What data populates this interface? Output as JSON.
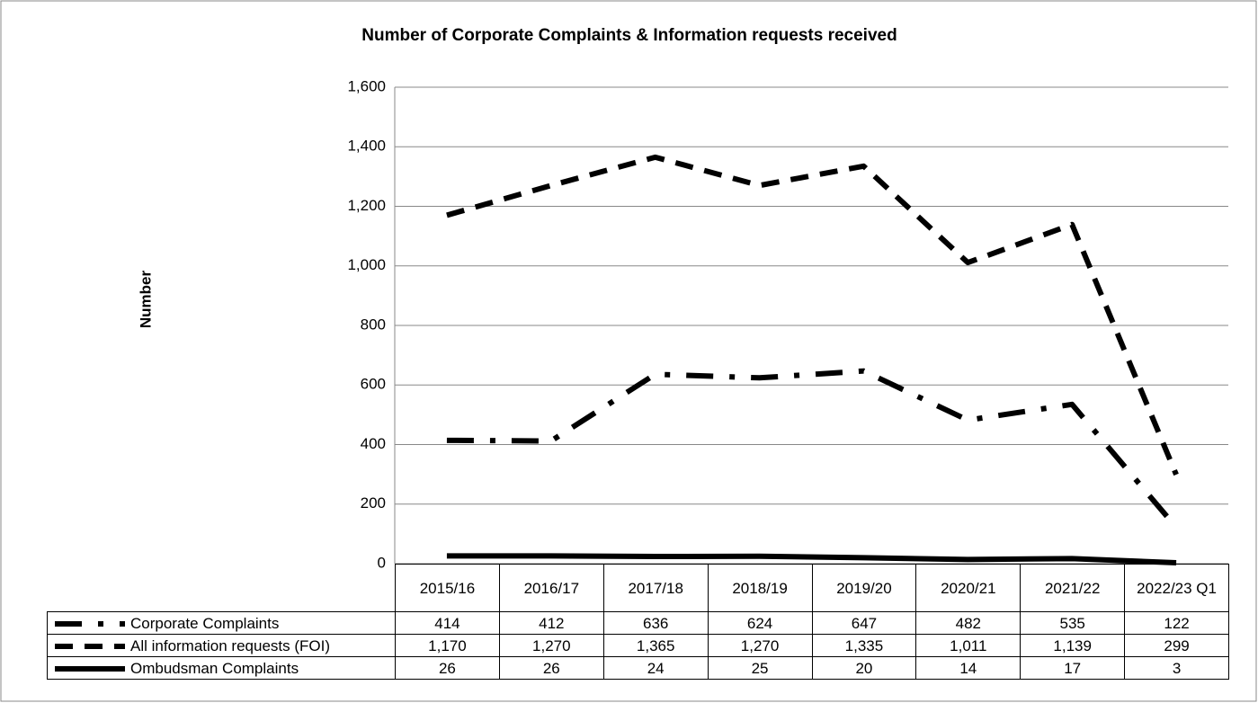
{
  "chart_data": {
    "type": "line",
    "title": "Number of Corporate Complaints & Information requests received",
    "ylabel": "Number",
    "categories": [
      "2015/16",
      "2016/17",
      "2017/18",
      "2018/19",
      "2019/20",
      "2020/21",
      "2021/22",
      "2022/23 Q1"
    ],
    "series": [
      {
        "name": "Corporate Complaints",
        "color": "#000000",
        "style": "dash-dot",
        "values": [
          414,
          412,
          636,
          624,
          647,
          482,
          535,
          122
        ]
      },
      {
        "name": "All information requests (FOI)",
        "color": "#000000",
        "style": "dash",
        "values": [
          1170,
          1270,
          1365,
          1270,
          1335,
          1011,
          1139,
          299
        ],
        "value_labels": [
          "1,170",
          "1,270",
          "1,365",
          "1,270",
          "1,335",
          "1,011",
          "1,139",
          "299"
        ]
      },
      {
        "name": "Ombudsman Complaints",
        "color": "#000000",
        "style": "solid",
        "values": [
          26,
          26,
          24,
          25,
          20,
          14,
          17,
          3
        ]
      }
    ],
    "ylim": [
      0,
      1600
    ],
    "yticks": [
      0,
      200,
      400,
      600,
      800,
      {
        "value": 1000,
        "label": "1,000"
      },
      {
        "value": 1200,
        "label": "1,200"
      },
      {
        "value": 1400,
        "label": "1,400"
      },
      {
        "value": 1600,
        "label": "1,600"
      }
    ],
    "grid": true,
    "data_table": true
  }
}
